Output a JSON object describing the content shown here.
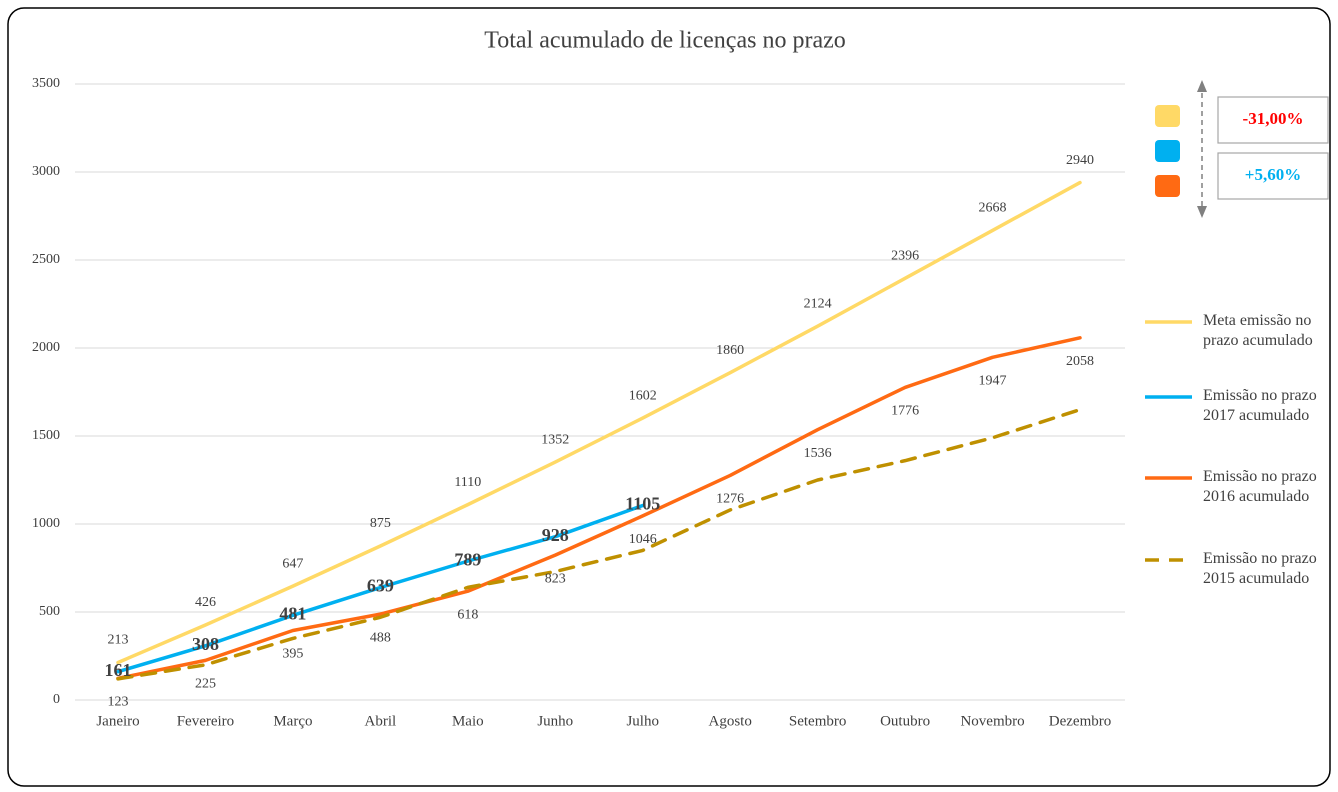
{
  "chart_data": {
    "type": "line",
    "title": "Total acumulado de licenças no prazo",
    "categories": [
      "Janeiro",
      "Fevereiro",
      "Março",
      "Abril",
      "Maio",
      "Junho",
      "Julho",
      "Agosto",
      "Setembro",
      "Outubro",
      "Novembro",
      "Dezembro"
    ],
    "series": [
      {
        "name": "Meta emissão no prazo acumulado",
        "color": "#ffd966",
        "data_labels": "above",
        "values": [
          213,
          426,
          647,
          875,
          1110,
          1352,
          1602,
          1860,
          2124,
          2396,
          2668,
          2940
        ]
      },
      {
        "name": "Emissão no prazo 2017 acumulado",
        "color": "#00b0f0",
        "data_labels": "center",
        "values": [
          161,
          308,
          481,
          639,
          789,
          928,
          1105,
          null,
          null,
          null,
          null,
          null
        ]
      },
      {
        "name": "Emissão no prazo 2016 acumulado",
        "color": "#ff6a13",
        "data_labels": "below",
        "values": [
          123,
          225,
          395,
          488,
          618,
          823,
          1046,
          1276,
          1536,
          1776,
          1947,
          2058
        ]
      },
      {
        "name": "Emissão no prazo 2015 acumulado",
        "color": "#bf9000",
        "dash": true,
        "values": [
          120,
          200,
          350,
          470,
          640,
          730,
          850,
          1080,
          1250,
          1360,
          1490,
          1650
        ]
      }
    ],
    "ylim": [
      0,
      3500
    ],
    "yticks": [
      0,
      500,
      1000,
      1500,
      2000,
      2500,
      3000,
      3500
    ],
    "grid": true,
    "legend": "right",
    "annotations": [
      {
        "text": "-31,00%",
        "color": "#ff0000"
      },
      {
        "text": "+5,60%",
        "color": "#00b0f0"
      }
    ]
  }
}
